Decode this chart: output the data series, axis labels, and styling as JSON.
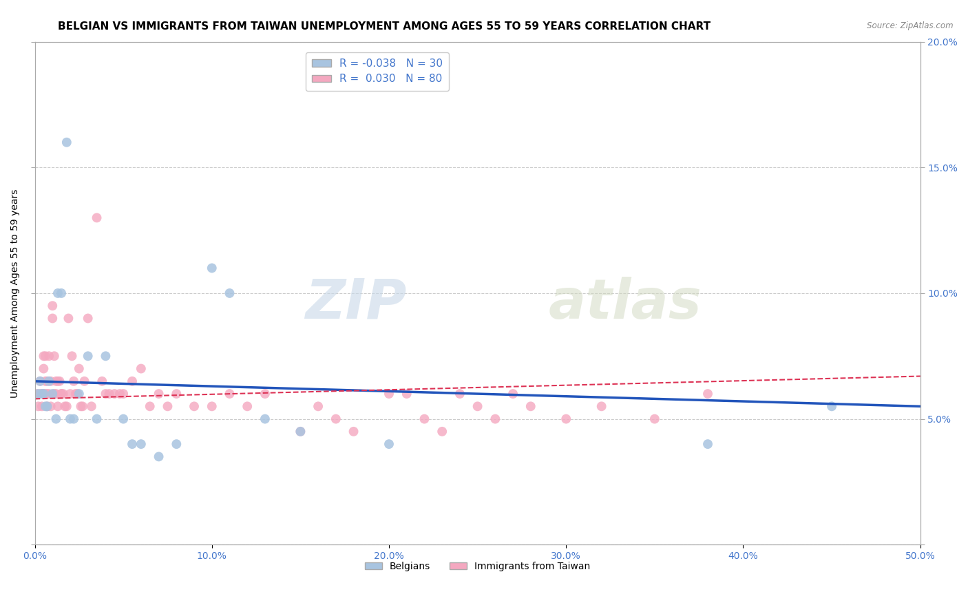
{
  "title": "BELGIAN VS IMMIGRANTS FROM TAIWAN UNEMPLOYMENT AMONG AGES 55 TO 59 YEARS CORRELATION CHART",
  "source": "Source: ZipAtlas.com",
  "ylabel": "Unemployment Among Ages 55 to 59 years",
  "xlim": [
    0.0,
    0.5
  ],
  "ylim": [
    0.0,
    0.2
  ],
  "xticks": [
    0.0,
    0.1,
    0.2,
    0.3,
    0.4,
    0.5
  ],
  "xticklabels": [
    "0.0%",
    "10.0%",
    "20.0%",
    "30.0%",
    "40.0%",
    "50.0%"
  ],
  "yticks": [
    0.0,
    0.05,
    0.1,
    0.15,
    0.2
  ],
  "right_yticklabels": [
    "",
    "5.0%",
    "10.0%",
    "15.0%",
    "20.0%"
  ],
  "background_color": "#ffffff",
  "grid_color": "#cccccc",
  "belgian_color": "#a8c4e0",
  "taiwan_color": "#f4a8c0",
  "belgian_line_color": "#2255bb",
  "taiwan_line_color": "#dd3355",
  "legend_belgian_R": "-0.038",
  "legend_belgian_N": "30",
  "legend_taiwan_R": "0.030",
  "legend_taiwan_N": "80",
  "watermark_zip": "ZIP",
  "watermark_atlas": "atlas",
  "belgians_x": [
    0.002,
    0.003,
    0.004,
    0.005,
    0.006,
    0.007,
    0.008,
    0.01,
    0.012,
    0.013,
    0.015,
    0.018,
    0.02,
    0.022,
    0.025,
    0.03,
    0.035,
    0.04,
    0.05,
    0.055,
    0.06,
    0.07,
    0.08,
    0.1,
    0.11,
    0.13,
    0.15,
    0.2,
    0.38,
    0.45
  ],
  "belgians_y": [
    0.06,
    0.065,
    0.06,
    0.06,
    0.055,
    0.055,
    0.065,
    0.06,
    0.05,
    0.1,
    0.1,
    0.16,
    0.05,
    0.05,
    0.06,
    0.075,
    0.05,
    0.075,
    0.05,
    0.04,
    0.04,
    0.035,
    0.04,
    0.11,
    0.1,
    0.05,
    0.045,
    0.04,
    0.04,
    0.055
  ],
  "taiwan_x": [
    0.001,
    0.002,
    0.003,
    0.003,
    0.004,
    0.004,
    0.005,
    0.005,
    0.005,
    0.006,
    0.006,
    0.006,
    0.007,
    0.007,
    0.007,
    0.008,
    0.008,
    0.009,
    0.009,
    0.01,
    0.01,
    0.011,
    0.011,
    0.012,
    0.012,
    0.013,
    0.013,
    0.014,
    0.015,
    0.015,
    0.016,
    0.017,
    0.018,
    0.019,
    0.02,
    0.021,
    0.022,
    0.023,
    0.024,
    0.025,
    0.026,
    0.027,
    0.028,
    0.03,
    0.032,
    0.035,
    0.038,
    0.04,
    0.042,
    0.045,
    0.048,
    0.05,
    0.055,
    0.06,
    0.065,
    0.07,
    0.075,
    0.08,
    0.09,
    0.1,
    0.11,
    0.12,
    0.13,
    0.15,
    0.16,
    0.17,
    0.18,
    0.2,
    0.21,
    0.22,
    0.23,
    0.24,
    0.25,
    0.26,
    0.27,
    0.28,
    0.3,
    0.32,
    0.35,
    0.38
  ],
  "taiwan_y": [
    0.06,
    0.055,
    0.065,
    0.06,
    0.06,
    0.055,
    0.07,
    0.06,
    0.075,
    0.06,
    0.065,
    0.075,
    0.06,
    0.065,
    0.055,
    0.06,
    0.075,
    0.065,
    0.055,
    0.09,
    0.095,
    0.06,
    0.075,
    0.06,
    0.065,
    0.055,
    0.065,
    0.065,
    0.06,
    0.06,
    0.06,
    0.055,
    0.055,
    0.09,
    0.06,
    0.075,
    0.065,
    0.06,
    0.06,
    0.07,
    0.055,
    0.055,
    0.065,
    0.09,
    0.055,
    0.13,
    0.065,
    0.06,
    0.06,
    0.06,
    0.06,
    0.06,
    0.065,
    0.07,
    0.055,
    0.06,
    0.055,
    0.06,
    0.055,
    0.055,
    0.06,
    0.055,
    0.06,
    0.045,
    0.055,
    0.05,
    0.045,
    0.06,
    0.06,
    0.05,
    0.045,
    0.06,
    0.055,
    0.05,
    0.06,
    0.055,
    0.05,
    0.055,
    0.05,
    0.06
  ],
  "title_fontsize": 11,
  "axis_fontsize": 10,
  "tick_fontsize": 10,
  "marker_size": 100
}
